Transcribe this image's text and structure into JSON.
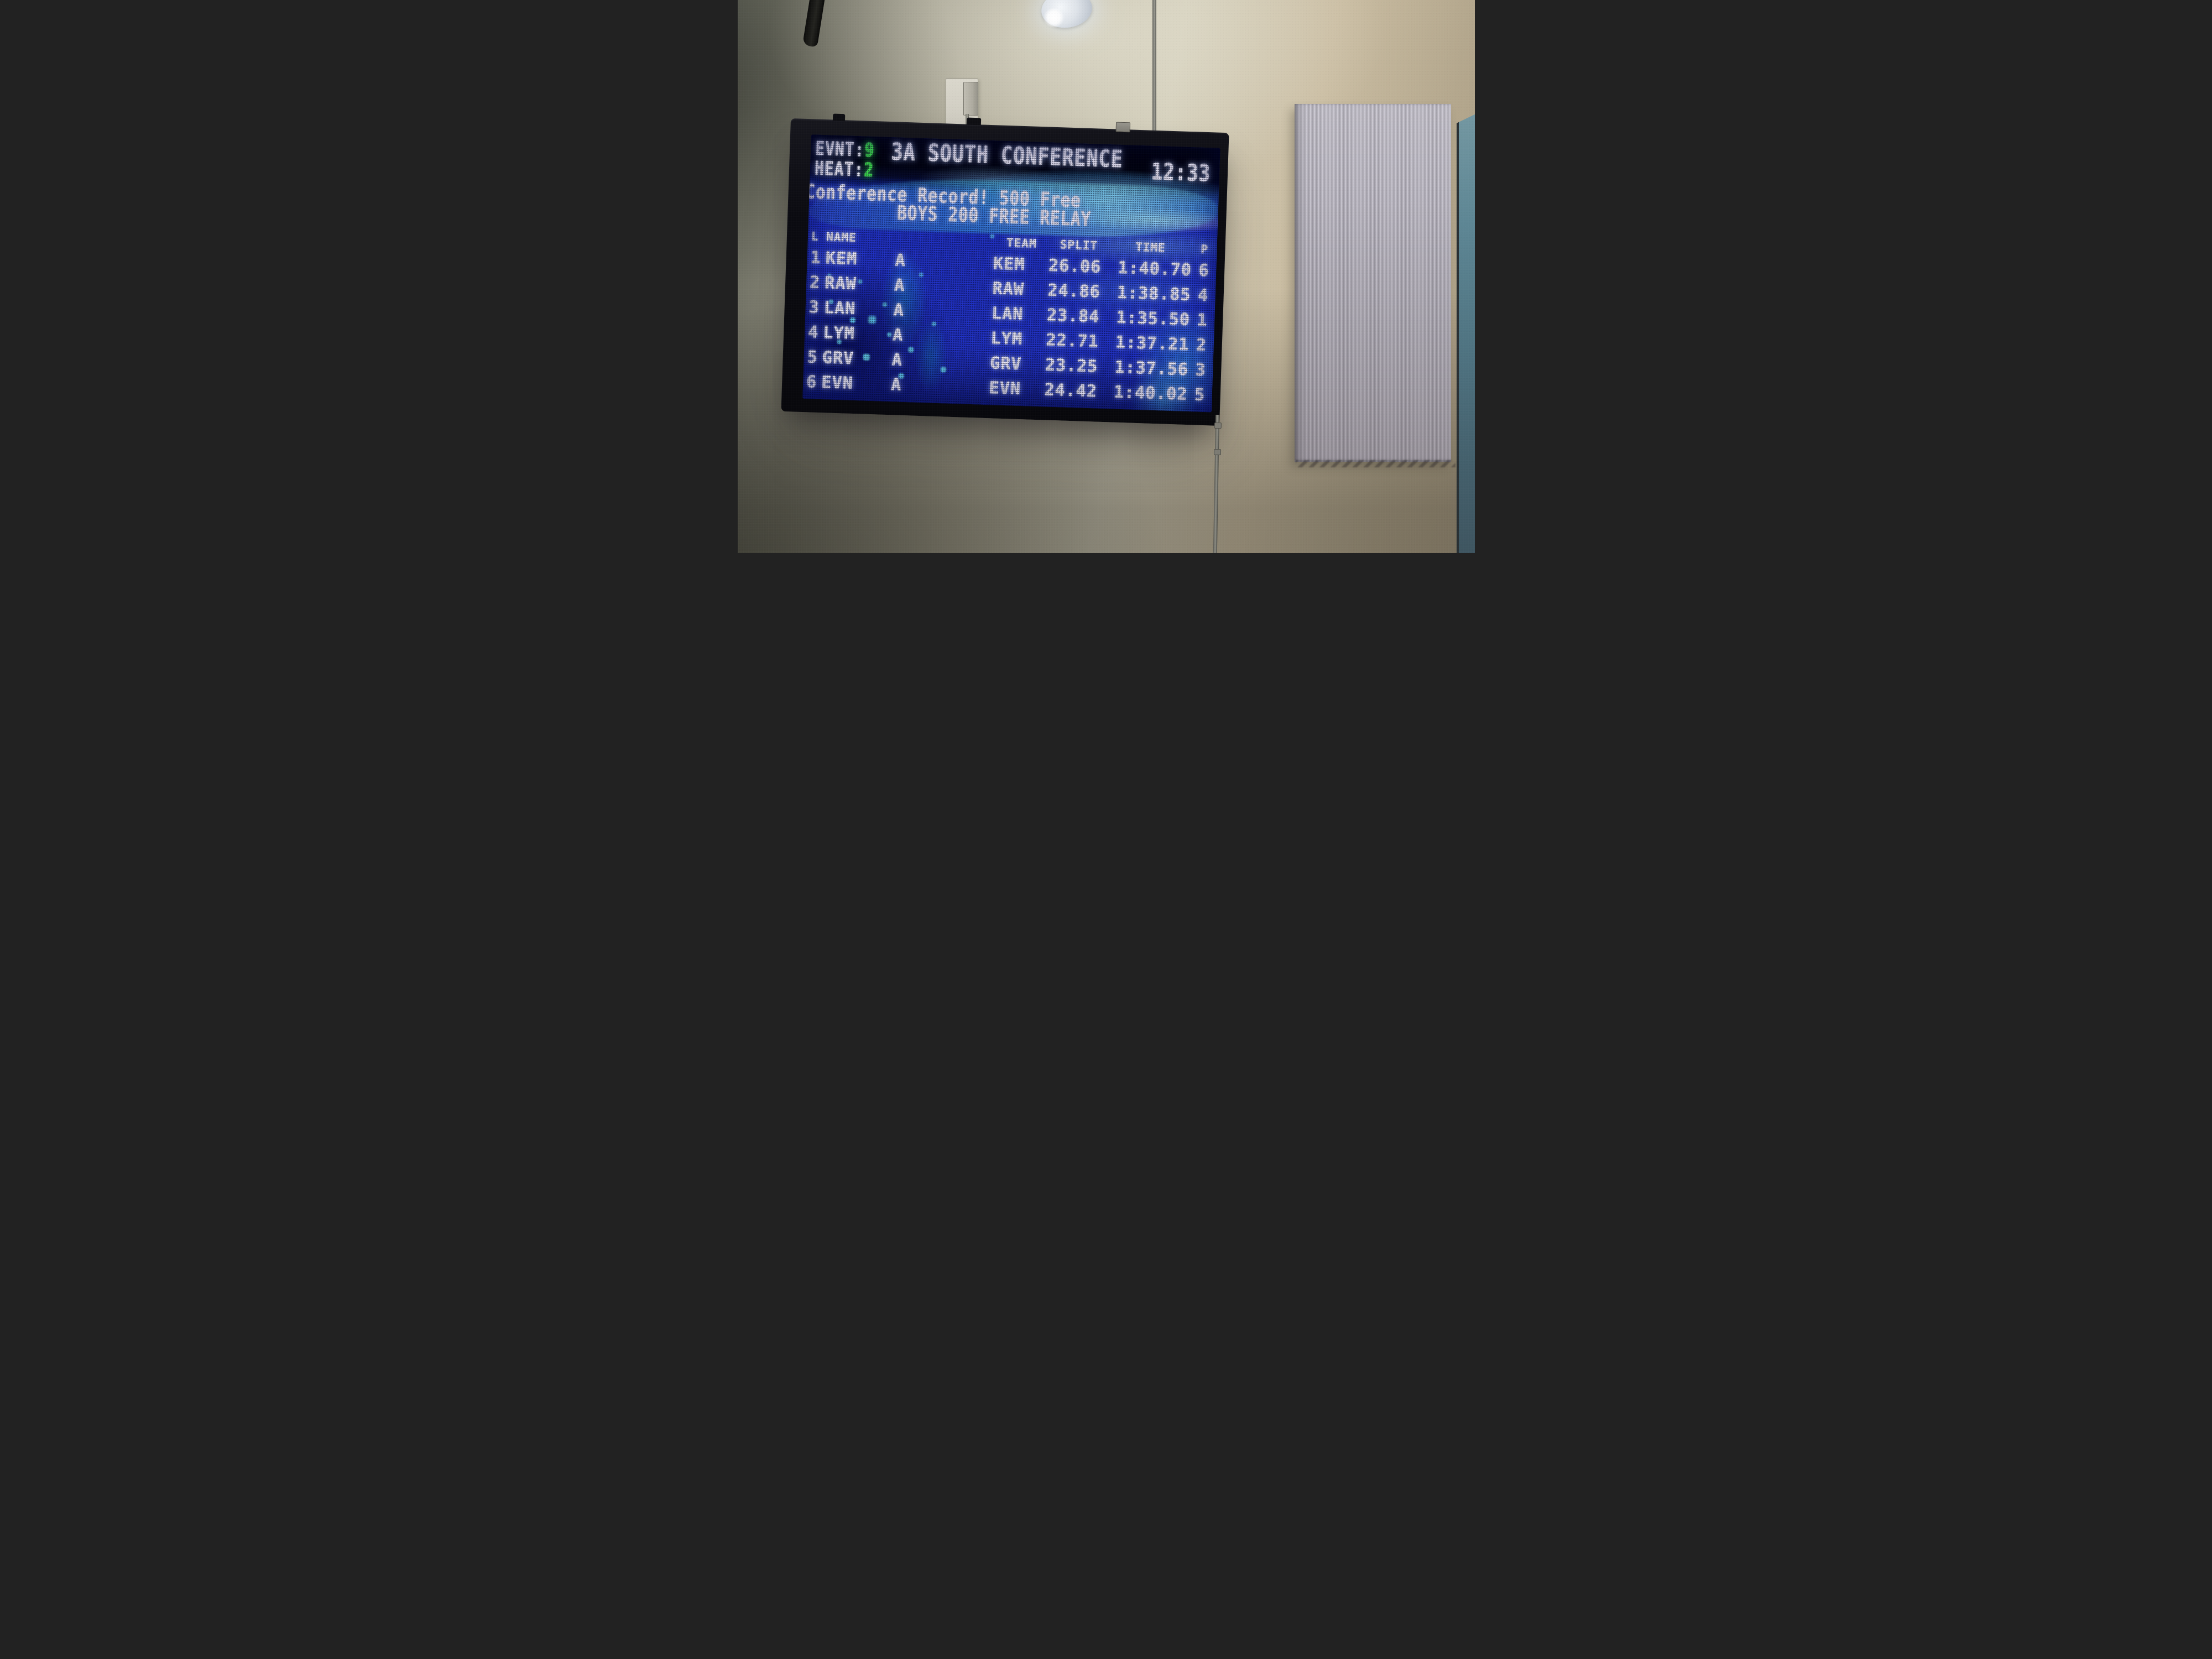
{
  "scoreboard": {
    "event": {
      "label": "EVNT:",
      "value": "9"
    },
    "heat": {
      "label": "HEAT:",
      "value": "2"
    },
    "title": "3A SOUTH CONFERENCE",
    "clock": "12:33",
    "record_banner": {
      "line1": "Conference Record! 500 Free",
      "line2": "BOYS 200 FREE RELAY"
    },
    "results_table": {
      "columns": {
        "lane": "L",
        "name": "NAME",
        "team": "TEAM",
        "split": "SPLIT",
        "time": "TIME",
        "place": "P"
      },
      "rows": [
        {
          "lane": "1",
          "name": "KEM",
          "relay": "A",
          "team": "KEM",
          "split": "26.06",
          "time": "1:40.70",
          "place": "6"
        },
        {
          "lane": "2",
          "name": "RAW",
          "relay": "A",
          "team": "RAW",
          "split": "24.86",
          "time": "1:38.85",
          "place": "4"
        },
        {
          "lane": "3",
          "name": "LAN",
          "relay": "A",
          "team": "LAN",
          "split": "23.84",
          "time": "1:35.50",
          "place": "1"
        },
        {
          "lane": "4",
          "name": "LYM",
          "relay": "A",
          "team": "LYM",
          "split": "22.71",
          "time": "1:37.21",
          "place": "2"
        },
        {
          "lane": "5",
          "name": "GRV",
          "relay": "A",
          "team": "GRV",
          "split": "23.25",
          "time": "1:37.56",
          "place": "3"
        },
        {
          "lane": "6",
          "name": "EVN",
          "relay": "A",
          "team": "EVN",
          "split": "24.42",
          "time": "1:40.02",
          "place": "5"
        }
      ]
    },
    "colors": {
      "led_text": "#f1efff",
      "led_accent_green": "#3ee84f",
      "water_blue": "#2133cc",
      "bubble_cyan": "#6eebff",
      "bezel_black": "#0a0a10"
    }
  },
  "scene": {
    "wall_tan": "#cfcab6",
    "wall_olive": "#6e7064",
    "panel_gray": "#aba8b2",
    "teal_column": "#4d7a88"
  }
}
